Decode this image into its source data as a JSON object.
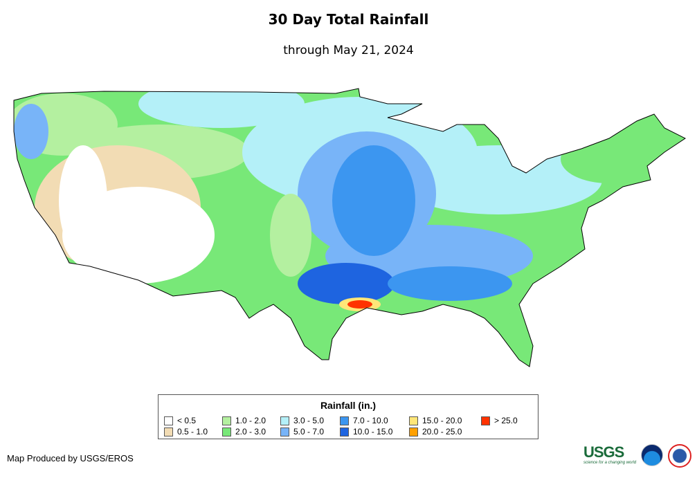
{
  "title": "30 Day Total Rainfall",
  "subtitle": "through May 21, 2024",
  "legend": {
    "title": "Rainfall (in.)",
    "items": [
      {
        "label": "< 0.5",
        "color": "#ffffff"
      },
      {
        "label": "0.5 - 1.0",
        "color": "#f2dcb4"
      },
      {
        "label": "1.0 - 2.0",
        "color": "#b4f0a0"
      },
      {
        "label": "2.0 - 3.0",
        "color": "#78e878"
      },
      {
        "label": "3.0 - 5.0",
        "color": "#b4f0f8"
      },
      {
        "label": "5.0 - 7.0",
        "color": "#78b4f8"
      },
      {
        "label": "7.0 - 10.0",
        "color": "#3c96f0"
      },
      {
        "label": "10.0 - 15.0",
        "color": "#1e64e0"
      },
      {
        "label": "15.0 - 20.0",
        "color": "#ffe678"
      },
      {
        "label": "20.0 - 25.0",
        "color": "#ffa000"
      },
      {
        "label": "> 25.0",
        "color": "#ff3200"
      }
    ]
  },
  "credit": "Map Produced by USGS/EROS",
  "logos": {
    "usgs": "USGS",
    "usgs_tagline": "science for a changing world",
    "noaa": "NOAA",
    "nws": "National Weather Service"
  }
}
